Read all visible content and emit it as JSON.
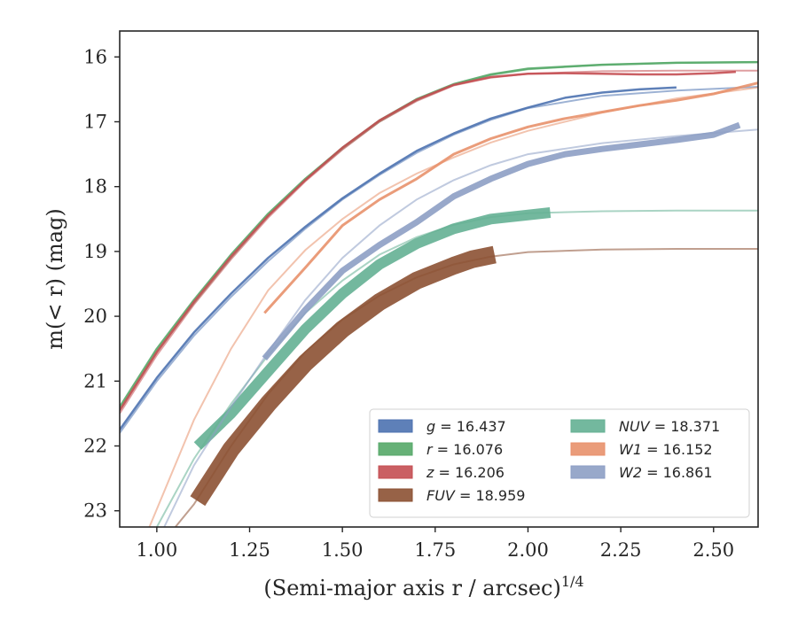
{
  "chart_data": {
    "type": "line",
    "title": "",
    "xlabel": "(Semi-major axis r / arcsec)",
    "xlabel_sup": "1/4",
    "ylabel": "m(< r) (mag)",
    "xlim": [
      0.9,
      2.62
    ],
    "ylim": [
      23.25,
      15.6
    ],
    "y_inverted": true,
    "grid": false,
    "legend_position": "lower-right",
    "x_ticks": [
      "1.00",
      "1.25",
      "1.50",
      "1.75",
      "2.00",
      "2.25",
      "2.50"
    ],
    "x_tick_values": [
      1.0,
      1.25,
      1.5,
      1.75,
      2.0,
      2.25,
      2.5
    ],
    "y_ticks": [
      "16",
      "17",
      "18",
      "19",
      "20",
      "21",
      "22",
      "23"
    ],
    "y_tick_values": [
      16,
      17,
      18,
      19,
      20,
      21,
      22,
      23
    ],
    "series": [
      {
        "name": "g = 16.437",
        "band": "g",
        "total_mag": "16.437",
        "color": "#4c72b0",
        "model": [
          [
            0.9,
            21.8
          ],
          [
            1.0,
            21.0
          ],
          [
            1.1,
            20.3
          ],
          [
            1.2,
            19.7
          ],
          [
            1.3,
            19.15
          ],
          [
            1.4,
            18.65
          ],
          [
            1.5,
            18.2
          ],
          [
            1.6,
            17.82
          ],
          [
            1.7,
            17.48
          ],
          [
            1.8,
            17.2
          ],
          [
            1.9,
            16.97
          ],
          [
            2.0,
            16.79
          ],
          [
            2.2,
            16.6
          ],
          [
            2.4,
            16.52
          ],
          [
            2.62,
            16.46
          ]
        ],
        "obs": [
          [
            0.9,
            21.75
          ],
          [
            1.0,
            20.95
          ],
          [
            1.1,
            20.25
          ],
          [
            1.2,
            19.65
          ],
          [
            1.3,
            19.1
          ],
          [
            1.4,
            18.62
          ],
          [
            1.5,
            18.18
          ],
          [
            1.6,
            17.8
          ],
          [
            1.7,
            17.45
          ],
          [
            1.8,
            17.18
          ],
          [
            1.9,
            16.95
          ],
          [
            2.0,
            16.78
          ],
          [
            2.1,
            16.63
          ],
          [
            2.2,
            16.55
          ],
          [
            2.3,
            16.5
          ],
          [
            2.4,
            16.47
          ]
        ],
        "obs_width": 2.5
      },
      {
        "name": "r = 16.076",
        "band": "r",
        "total_mag": "16.076",
        "color": "#55a868",
        "model": [
          [
            0.9,
            21.45
          ],
          [
            1.0,
            20.55
          ],
          [
            1.1,
            19.8
          ],
          [
            1.2,
            19.1
          ],
          [
            1.3,
            18.45
          ],
          [
            1.4,
            17.9
          ],
          [
            1.5,
            17.42
          ],
          [
            1.6,
            17.0
          ],
          [
            1.7,
            16.67
          ],
          [
            1.8,
            16.43
          ],
          [
            1.9,
            16.28
          ],
          [
            2.0,
            16.19
          ],
          [
            2.2,
            16.12
          ],
          [
            2.4,
            16.09
          ],
          [
            2.62,
            16.08
          ]
        ],
        "obs": [
          [
            0.9,
            21.4
          ],
          [
            1.0,
            20.5
          ],
          [
            1.1,
            19.75
          ],
          [
            1.2,
            19.05
          ],
          [
            1.3,
            18.42
          ],
          [
            1.4,
            17.88
          ],
          [
            1.5,
            17.4
          ],
          [
            1.6,
            16.98
          ],
          [
            1.7,
            16.65
          ],
          [
            1.8,
            16.42
          ],
          [
            1.9,
            16.27
          ],
          [
            2.0,
            16.18
          ],
          [
            2.2,
            16.12
          ],
          [
            2.4,
            16.09
          ],
          [
            2.62,
            16.08
          ]
        ],
        "obs_width": 2.5
      },
      {
        "name": "z = 16.206",
        "band": "z",
        "total_mag": "16.206",
        "color": "#c44e52",
        "model": [
          [
            0.9,
            21.5
          ],
          [
            1.0,
            20.6
          ],
          [
            1.1,
            19.82
          ],
          [
            1.2,
            19.12
          ],
          [
            1.3,
            18.48
          ],
          [
            1.4,
            17.92
          ],
          [
            1.5,
            17.43
          ],
          [
            1.6,
            17.0
          ],
          [
            1.7,
            16.68
          ],
          [
            1.8,
            16.44
          ],
          [
            1.9,
            16.32
          ],
          [
            2.0,
            16.26
          ],
          [
            2.2,
            16.22
          ],
          [
            2.4,
            16.21
          ],
          [
            2.62,
            16.21
          ]
        ],
        "obs": [
          [
            0.9,
            21.45
          ],
          [
            1.0,
            20.55
          ],
          [
            1.1,
            19.78
          ],
          [
            1.2,
            19.08
          ],
          [
            1.3,
            18.45
          ],
          [
            1.4,
            17.9
          ],
          [
            1.5,
            17.4
          ],
          [
            1.6,
            16.98
          ],
          [
            1.7,
            16.66
          ],
          [
            1.8,
            16.43
          ],
          [
            1.9,
            16.31
          ],
          [
            2.0,
            16.26
          ],
          [
            2.1,
            16.25
          ],
          [
            2.2,
            16.26
          ],
          [
            2.3,
            16.27
          ],
          [
            2.4,
            16.27
          ],
          [
            2.5,
            16.25
          ],
          [
            2.56,
            16.23
          ]
        ],
        "obs_width": 2.5
      },
      {
        "name": "FUV = 18.959",
        "band": "FUV",
        "total_mag": "18.959",
        "color": "#8c5133",
        "model": [
          [
            1.05,
            23.25
          ],
          [
            1.1,
            22.9
          ],
          [
            1.2,
            22.0
          ],
          [
            1.3,
            21.2
          ],
          [
            1.4,
            20.55
          ],
          [
            1.5,
            20.05
          ],
          [
            1.6,
            19.68
          ],
          [
            1.7,
            19.4
          ],
          [
            1.8,
            19.2
          ],
          [
            1.9,
            19.08
          ],
          [
            2.0,
            19.01
          ],
          [
            2.2,
            18.97
          ],
          [
            2.4,
            18.96
          ],
          [
            2.62,
            18.96
          ]
        ],
        "obs": [
          [
            1.11,
            22.85
          ],
          [
            1.2,
            22.05
          ],
          [
            1.3,
            21.35
          ],
          [
            1.4,
            20.72
          ],
          [
            1.5,
            20.2
          ],
          [
            1.6,
            19.78
          ],
          [
            1.7,
            19.45
          ],
          [
            1.8,
            19.22
          ],
          [
            1.85,
            19.12
          ],
          [
            1.91,
            19.05
          ]
        ],
        "obs_width": 20
      },
      {
        "name": "NUV = 18.371",
        "band": "NUV",
        "total_mag": "18.371",
        "color": "#64b093",
        "model": [
          [
            1.0,
            23.25
          ],
          [
            1.1,
            22.2
          ],
          [
            1.2,
            21.35
          ],
          [
            1.3,
            20.6
          ],
          [
            1.4,
            19.95
          ],
          [
            1.5,
            19.45
          ],
          [
            1.6,
            19.05
          ],
          [
            1.7,
            18.78
          ],
          [
            1.8,
            18.59
          ],
          [
            1.9,
            18.47
          ],
          [
            2.0,
            18.41
          ],
          [
            2.2,
            18.38
          ],
          [
            2.4,
            18.37
          ],
          [
            2.62,
            18.37
          ]
        ],
        "obs": [
          [
            1.11,
            22.0
          ],
          [
            1.2,
            21.5
          ],
          [
            1.3,
            20.85
          ],
          [
            1.4,
            20.2
          ],
          [
            1.5,
            19.65
          ],
          [
            1.6,
            19.2
          ],
          [
            1.7,
            18.88
          ],
          [
            1.8,
            18.65
          ],
          [
            1.9,
            18.5
          ],
          [
            2.06,
            18.4
          ]
        ],
        "obs_width": 12
      },
      {
        "name": "W1 = 16.152",
        "band": "W1",
        "total_mag": "16.152",
        "color": "#e8916c",
        "model": [
          [
            0.98,
            23.25
          ],
          [
            1.1,
            21.6
          ],
          [
            1.2,
            20.5
          ],
          [
            1.3,
            19.6
          ],
          [
            1.4,
            18.98
          ],
          [
            1.5,
            18.5
          ],
          [
            1.6,
            18.1
          ],
          [
            1.7,
            17.8
          ],
          [
            1.8,
            17.55
          ],
          [
            1.9,
            17.32
          ],
          [
            2.0,
            17.14
          ],
          [
            2.2,
            16.86
          ],
          [
            2.4,
            16.64
          ],
          [
            2.62,
            16.47
          ]
        ],
        "obs": [
          [
            1.29,
            19.95
          ],
          [
            1.4,
            19.25
          ],
          [
            1.5,
            18.6
          ],
          [
            1.6,
            18.2
          ],
          [
            1.7,
            17.88
          ],
          [
            1.8,
            17.5
          ],
          [
            1.9,
            17.26
          ],
          [
            2.0,
            17.08
          ],
          [
            2.1,
            16.95
          ],
          [
            2.2,
            16.85
          ],
          [
            2.3,
            16.75
          ],
          [
            2.4,
            16.67
          ],
          [
            2.5,
            16.57
          ],
          [
            2.62,
            16.4
          ]
        ],
        "obs_width": 3
      },
      {
        "name": "W2 = 16.861",
        "band": "W2",
        "total_mag": "16.861",
        "color": "#8d9ec4",
        "model": [
          [
            1.02,
            23.25
          ],
          [
            1.1,
            22.3
          ],
          [
            1.2,
            21.4
          ],
          [
            1.3,
            20.55
          ],
          [
            1.4,
            19.75
          ],
          [
            1.5,
            19.1
          ],
          [
            1.6,
            18.6
          ],
          [
            1.7,
            18.2
          ],
          [
            1.8,
            17.9
          ],
          [
            1.9,
            17.67
          ],
          [
            2.0,
            17.5
          ],
          [
            2.2,
            17.33
          ],
          [
            2.4,
            17.22
          ],
          [
            2.62,
            17.12
          ]
        ],
        "obs": [
          [
            1.29,
            20.65
          ],
          [
            1.4,
            19.9
          ],
          [
            1.5,
            19.3
          ],
          [
            1.6,
            18.9
          ],
          [
            1.7,
            18.55
          ],
          [
            1.8,
            18.15
          ],
          [
            1.9,
            17.88
          ],
          [
            2.0,
            17.65
          ],
          [
            2.1,
            17.5
          ],
          [
            2.2,
            17.42
          ],
          [
            2.3,
            17.35
          ],
          [
            2.4,
            17.28
          ],
          [
            2.5,
            17.2
          ],
          [
            2.57,
            17.05
          ]
        ],
        "obs_width": 7
      }
    ],
    "legend": {
      "columns": [
        [
          "g",
          "r",
          "z",
          "FUV"
        ],
        [
          "NUV",
          "W1",
          "W2"
        ]
      ]
    }
  }
}
